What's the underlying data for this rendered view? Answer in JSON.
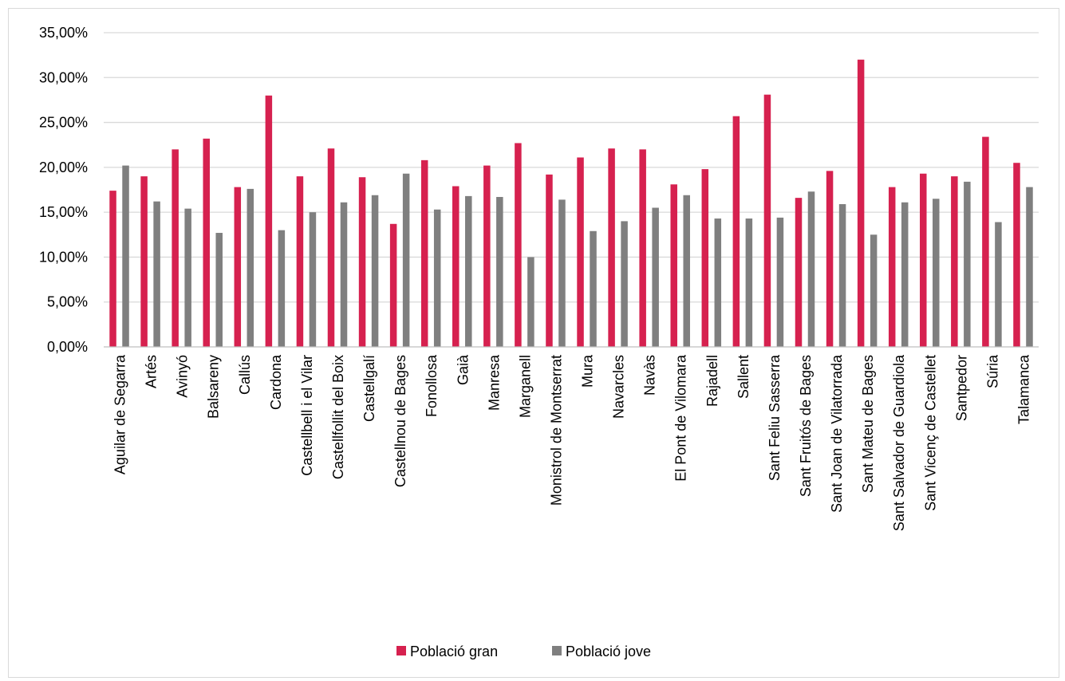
{
  "chart_data": {
    "type": "bar",
    "title": "",
    "xlabel": "",
    "ylabel": "",
    "ylim": [
      0,
      35
    ],
    "y_ticks": [
      "0,00%",
      "5,00%",
      "10,00%",
      "15,00%",
      "20,00%",
      "25,00%",
      "30,00%",
      "35,00%"
    ],
    "grid": true,
    "legend_position": "bottom",
    "categories": [
      "Aguilar de Segarra",
      "Artés",
      "Avinyó",
      "Balsareny",
      "Callús",
      "Cardona",
      "Castellbell i el Vilar",
      "Castellfollit del Boix",
      "Castellgalí",
      "Castellnou de Bages",
      "Fonollosa",
      "Gaià",
      "Manresa",
      "Marganell",
      "Monistrol de Montserrat",
      "Mura",
      "Navarcles",
      "Navàs",
      "El Pont de Vilomara",
      "Rajadell",
      "Sallent",
      "Sant Feliu Sasserra",
      "Sant Fruitós de Bages",
      "Sant Joan de Vilatorrada",
      "Sant Mateu de Bages",
      "Sant Salvador de Guardiola",
      "Sant Vicenç de Castellet",
      "Santpedor",
      "Súria",
      "Talamanca"
    ],
    "series": [
      {
        "name": "Població gran",
        "color": "#d6214f",
        "values": [
          17.4,
          19.0,
          22.0,
          23.2,
          17.8,
          28.0,
          19.0,
          22.1,
          18.9,
          13.7,
          20.8,
          17.9,
          20.2,
          22.7,
          19.2,
          21.1,
          22.1,
          22.0,
          18.1,
          19.8,
          25.7,
          28.1,
          16.6,
          19.6,
          32.0,
          17.8,
          19.3,
          19.0,
          23.4,
          20.5
        ]
      },
      {
        "name": "Població jove",
        "color": "#7f7f7f",
        "values": [
          20.2,
          16.2,
          15.4,
          12.7,
          17.6,
          13.0,
          15.0,
          16.1,
          16.9,
          19.3,
          15.3,
          16.8,
          16.7,
          10.0,
          16.4,
          12.9,
          14.0,
          15.5,
          16.9,
          14.3,
          14.3,
          14.4,
          17.3,
          15.9,
          12.5,
          16.1,
          16.5,
          18.4,
          13.9,
          17.8
        ]
      }
    ]
  }
}
